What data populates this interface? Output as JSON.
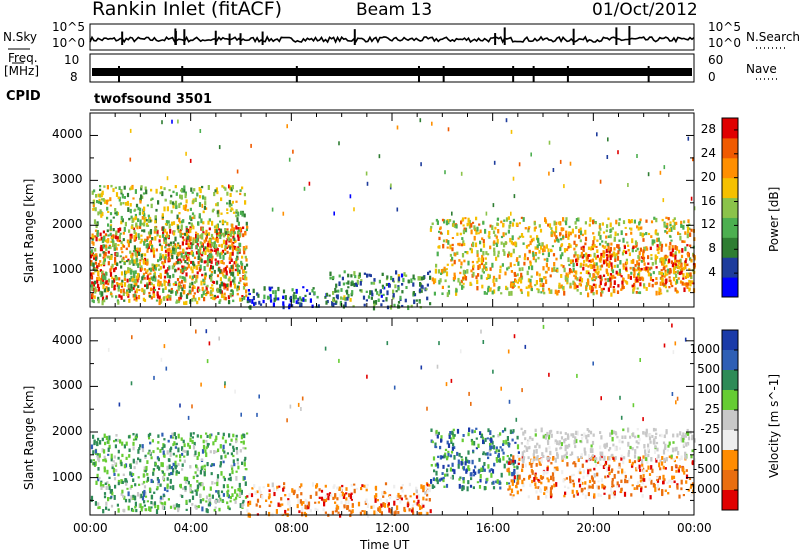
{
  "header": {
    "station": "Rankin Inlet (fitACF)",
    "beam": "Beam 13",
    "date": "01/Oct/2012"
  },
  "top_panels": {
    "nsky_label": "N.Sky",
    "nsky_ticks": [
      "10^5",
      "10^0"
    ],
    "nsearch_label": "N.Search",
    "nsearch_ticks": [
      "10^5",
      "10^0"
    ],
    "freq_label": "Freq.",
    "freq_unit": "[MHz]",
    "freq_ticks": [
      "10",
      "8"
    ],
    "nave_label": "Nave",
    "nave_ticks": [
      "60",
      "0"
    ],
    "cpid_label": "CPID",
    "cpid_value": "twofsound 3501"
  },
  "colors": {
    "power_scale": [
      "#0000ff",
      "#1e3c9c",
      "#2e7d32",
      "#4caf50",
      "#8bc34a",
      "#f5c000",
      "#ff8f00",
      "#f05a00",
      "#e00000"
    ],
    "velocity_scale": [
      "#1a3aa8",
      "#2f5fb5",
      "#2e8b57",
      "#66cc33",
      "#c8c8c8",
      "#eeeeee",
      "#ff8c00",
      "#e96e10",
      "#e00000"
    ]
  },
  "chart_data": [
    {
      "type": "heatmap",
      "title": "",
      "xlabel": "Time UT",
      "ylabel": "Slant Range [km]",
      "xlim": [
        "00:00",
        "24:00"
      ],
      "ylim": [
        180,
        4500
      ],
      "x_ticks": [
        "00:00",
        "04:00",
        "08:00",
        "12:00",
        "16:00",
        "20:00",
        "00:00"
      ],
      "y_ticks": [
        1000,
        2000,
        3000,
        4000
      ],
      "colorbar": {
        "label": "Power [dB]",
        "ticks": [
          "4",
          "8",
          "12",
          "16",
          "20",
          "24",
          "28"
        ],
        "range": [
          0,
          30
        ]
      },
      "scatter_regions": [
        {
          "t_start": 0.0,
          "t_end": 6.2,
          "range_min": 400,
          "range_max": 2000,
          "value": 26
        },
        {
          "t_start": 0.0,
          "t_end": 6.2,
          "range_min": 300,
          "range_max": 2900,
          "value": 14
        },
        {
          "t_start": 6.2,
          "t_end": 9.5,
          "range_min": 200,
          "range_max": 650,
          "value": 6
        },
        {
          "t_start": 9.5,
          "t_end": 13.5,
          "range_min": 200,
          "range_max": 1000,
          "value": 10
        },
        {
          "t_start": 13.5,
          "t_end": 24.0,
          "range_min": 500,
          "range_max": 2200,
          "value": 18
        },
        {
          "t_start": 19.0,
          "t_end": 24.0,
          "range_min": 600,
          "range_max": 1600,
          "value": 24
        }
      ]
    },
    {
      "type": "heatmap",
      "title": "",
      "xlabel": "Time UT",
      "ylabel": "Slant Range [km]",
      "xlim": [
        "00:00",
        "24:00"
      ],
      "ylim": [
        180,
        4500
      ],
      "x_ticks": [
        "00:00",
        "04:00",
        "08:00",
        "12:00",
        "16:00",
        "20:00",
        "00:00"
      ],
      "y_ticks": [
        1000,
        2000,
        3000,
        4000
      ],
      "colorbar": {
        "label": "Velocity [m s^-1]",
        "ticks": [
          "1000",
          "500",
          "100",
          "25",
          "-25",
          "-100",
          "-500",
          "-1000"
        ]
      },
      "scatter_regions": [
        {
          "t_start": 0.0,
          "t_end": 6.2,
          "range_min": 300,
          "range_max": 2000,
          "value": 300
        },
        {
          "t_start": 6.2,
          "t_end": 13.5,
          "range_min": 200,
          "range_max": 900,
          "value": -500
        },
        {
          "t_start": 13.5,
          "t_end": 17.0,
          "range_min": 800,
          "range_max": 2100,
          "value": 500
        },
        {
          "t_start": 16.5,
          "t_end": 24.0,
          "range_min": 600,
          "range_max": 1500,
          "value": -500
        },
        {
          "t_start": 17.0,
          "t_end": 24.0,
          "range_min": 1400,
          "range_max": 2100,
          "value": 0
        }
      ]
    }
  ]
}
